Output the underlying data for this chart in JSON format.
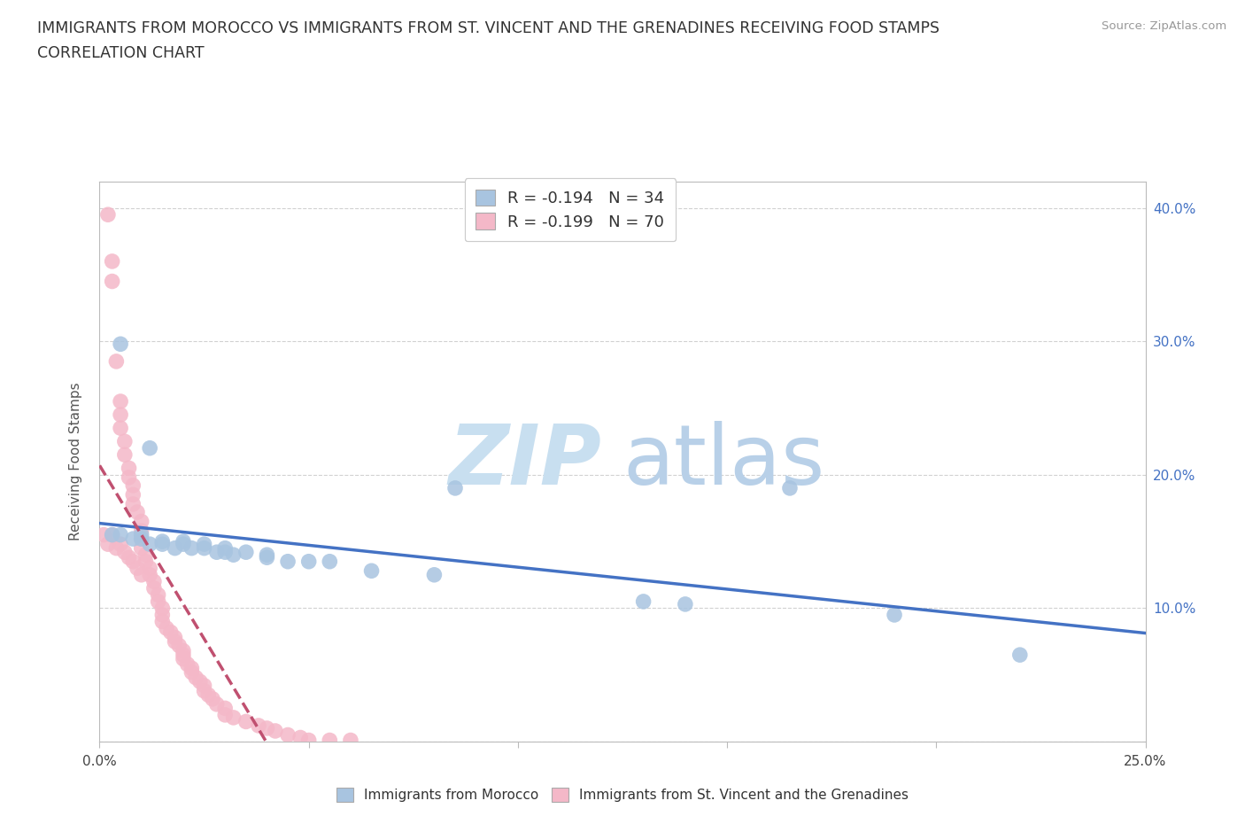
{
  "title_line1": "IMMIGRANTS FROM MOROCCO VS IMMIGRANTS FROM ST. VINCENT AND THE GRENADINES RECEIVING FOOD STAMPS",
  "title_line2": "CORRELATION CHART",
  "source_text": "Source: ZipAtlas.com",
  "ylabel": "Receiving Food Stamps",
  "xlim": [
    0.0,
    0.25
  ],
  "ylim": [
    0.0,
    0.42
  ],
  "color_morocco": "#a8c4e0",
  "color_svg": "#f4b8c8",
  "line_color_morocco": "#4472c4",
  "line_color_svg": "#c05070",
  "watermark_zip": "ZIP",
  "watermark_atlas": "atlas",
  "watermark_color_zip": "#c8dff0",
  "watermark_color_atlas": "#b8d0e8",
  "background_color": "#ffffff",
  "grid_color": "#cccccc",
  "tick_color": "#4472c4",
  "title_color": "#333333",
  "source_color": "#999999",
  "legend_label1": "R = -0.194   N = 34",
  "legend_label2": "R = -0.199   N = 70",
  "bottom_label1": "Immigrants from Morocco",
  "bottom_label2": "Immigrants from St. Vincent and the Grenadines",
  "morocco_x": [
    0.003,
    0.005,
    0.008,
    0.01,
    0.01,
    0.012,
    0.015,
    0.015,
    0.018,
    0.02,
    0.02,
    0.022,
    0.025,
    0.025,
    0.028,
    0.03,
    0.03,
    0.032,
    0.035,
    0.04,
    0.04,
    0.045,
    0.05,
    0.055,
    0.065,
    0.08,
    0.085,
    0.13,
    0.14,
    0.165,
    0.19,
    0.22,
    0.005,
    0.012
  ],
  "morocco_y": [
    0.155,
    0.155,
    0.152,
    0.152,
    0.155,
    0.148,
    0.15,
    0.148,
    0.145,
    0.15,
    0.148,
    0.145,
    0.148,
    0.145,
    0.142,
    0.145,
    0.142,
    0.14,
    0.142,
    0.14,
    0.138,
    0.135,
    0.135,
    0.135,
    0.128,
    0.125,
    0.19,
    0.105,
    0.103,
    0.19,
    0.095,
    0.065,
    0.298,
    0.22
  ],
  "svg_x": [
    0.002,
    0.003,
    0.003,
    0.004,
    0.005,
    0.005,
    0.005,
    0.006,
    0.006,
    0.007,
    0.007,
    0.008,
    0.008,
    0.008,
    0.009,
    0.01,
    0.01,
    0.01,
    0.01,
    0.011,
    0.011,
    0.012,
    0.012,
    0.013,
    0.013,
    0.014,
    0.014,
    0.015,
    0.015,
    0.015,
    0.016,
    0.017,
    0.018,
    0.018,
    0.019,
    0.02,
    0.02,
    0.02,
    0.021,
    0.022,
    0.022,
    0.023,
    0.024,
    0.025,
    0.025,
    0.026,
    0.027,
    0.028,
    0.03,
    0.03,
    0.032,
    0.035,
    0.038,
    0.04,
    0.042,
    0.045,
    0.048,
    0.05,
    0.055,
    0.06,
    0.001,
    0.002,
    0.003,
    0.004,
    0.005,
    0.006,
    0.007,
    0.008,
    0.009,
    0.01
  ],
  "svg_y": [
    0.395,
    0.36,
    0.345,
    0.285,
    0.255,
    0.245,
    0.235,
    0.225,
    0.215,
    0.205,
    0.198,
    0.192,
    0.185,
    0.178,
    0.172,
    0.165,
    0.158,
    0.152,
    0.145,
    0.14,
    0.135,
    0.13,
    0.125,
    0.12,
    0.115,
    0.11,
    0.105,
    0.1,
    0.095,
    0.09,
    0.085,
    0.082,
    0.078,
    0.075,
    0.072,
    0.068,
    0.065,
    0.062,
    0.058,
    0.055,
    0.052,
    0.048,
    0.045,
    0.042,
    0.038,
    0.035,
    0.032,
    0.028,
    0.025,
    0.02,
    0.018,
    0.015,
    0.012,
    0.01,
    0.008,
    0.005,
    0.003,
    0.001,
    0.001,
    0.001,
    0.155,
    0.148,
    0.155,
    0.145,
    0.148,
    0.142,
    0.138,
    0.135,
    0.13,
    0.125
  ]
}
